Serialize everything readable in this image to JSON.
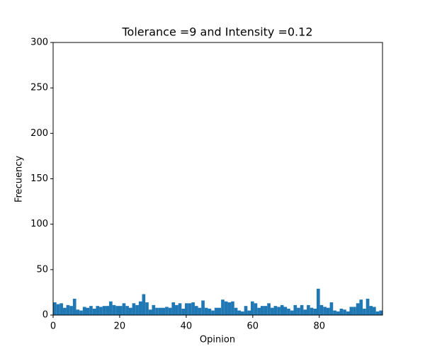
{
  "chart_data": {
    "type": "histogram",
    "title": "Tolerance =9 and Intensity =0.12",
    "x_label": "Opinion",
    "y_label": "Frecuency",
    "color": "#1f77b4",
    "grid": false,
    "bins": [
      0,
      0.99,
      1.98,
      2.97,
      3.96,
      4.95,
      5.94,
      6.93,
      7.92,
      8.91,
      9.9,
      10.89,
      11.88,
      12.87,
      13.86,
      14.85,
      15.84,
      16.83,
      17.82,
      18.81,
      19.8,
      20.79,
      21.78,
      22.77,
      23.76,
      24.75,
      25.74,
      26.73,
      27.72,
      28.71,
      29.7,
      30.69,
      31.68,
      32.67,
      33.66,
      34.65,
      35.64,
      36.63,
      37.62,
      38.61,
      39.6,
      40.59,
      41.58,
      42.57,
      43.56,
      44.55,
      45.54,
      46.53,
      47.52,
      48.51,
      49.5,
      50.49,
      51.48,
      52.47,
      53.46,
      54.45,
      55.44,
      56.43,
      57.42,
      58.41,
      59.4,
      60.39,
      61.38,
      62.37,
      63.36,
      64.35,
      65.34,
      66.33,
      67.32,
      68.31,
      69.3,
      70.29,
      71.28,
      72.27,
      73.26,
      74.25,
      75.24,
      76.23,
      77.22,
      78.21,
      79.2,
      80.19,
      81.18,
      82.17,
      83.16,
      84.15,
      85.14,
      86.13,
      87.12,
      88.11,
      89.1,
      90.09,
      91.08,
      92.07,
      93.06,
      94.05,
      95.04,
      96.03,
      97.02,
      98.01,
      99
    ],
    "values": [
      14,
      12,
      13,
      8,
      11,
      10,
      18,
      6,
      5,
      9,
      8,
      10,
      7,
      10,
      9,
      10,
      10,
      15,
      11,
      10,
      10,
      13,
      10,
      8,
      13,
      11,
      15,
      23,
      14,
      6,
      11,
      8,
      8,
      8,
      9,
      8,
      14,
      11,
      13,
      7,
      13,
      13,
      14,
      10,
      8,
      16,
      8,
      7,
      5,
      8,
      8,
      17,
      15,
      14,
      15,
      8,
      5,
      4,
      10,
      5,
      15,
      13,
      8,
      10,
      10,
      13,
      8,
      10,
      9,
      11,
      9,
      7,
      5,
      11,
      8,
      11,
      6,
      11,
      8,
      7,
      29,
      11,
      9,
      8,
      14,
      5,
      4,
      7,
      6,
      4,
      9,
      9,
      13,
      17,
      7,
      18,
      10,
      9,
      4,
      5
    ],
    "xlim": [
      0,
      99
    ],
    "ylim": [
      0,
      300
    ],
    "xticks": [
      0,
      20,
      40,
      60,
      80
    ],
    "yticks": [
      0,
      50,
      100,
      150,
      200,
      250,
      300
    ]
  }
}
